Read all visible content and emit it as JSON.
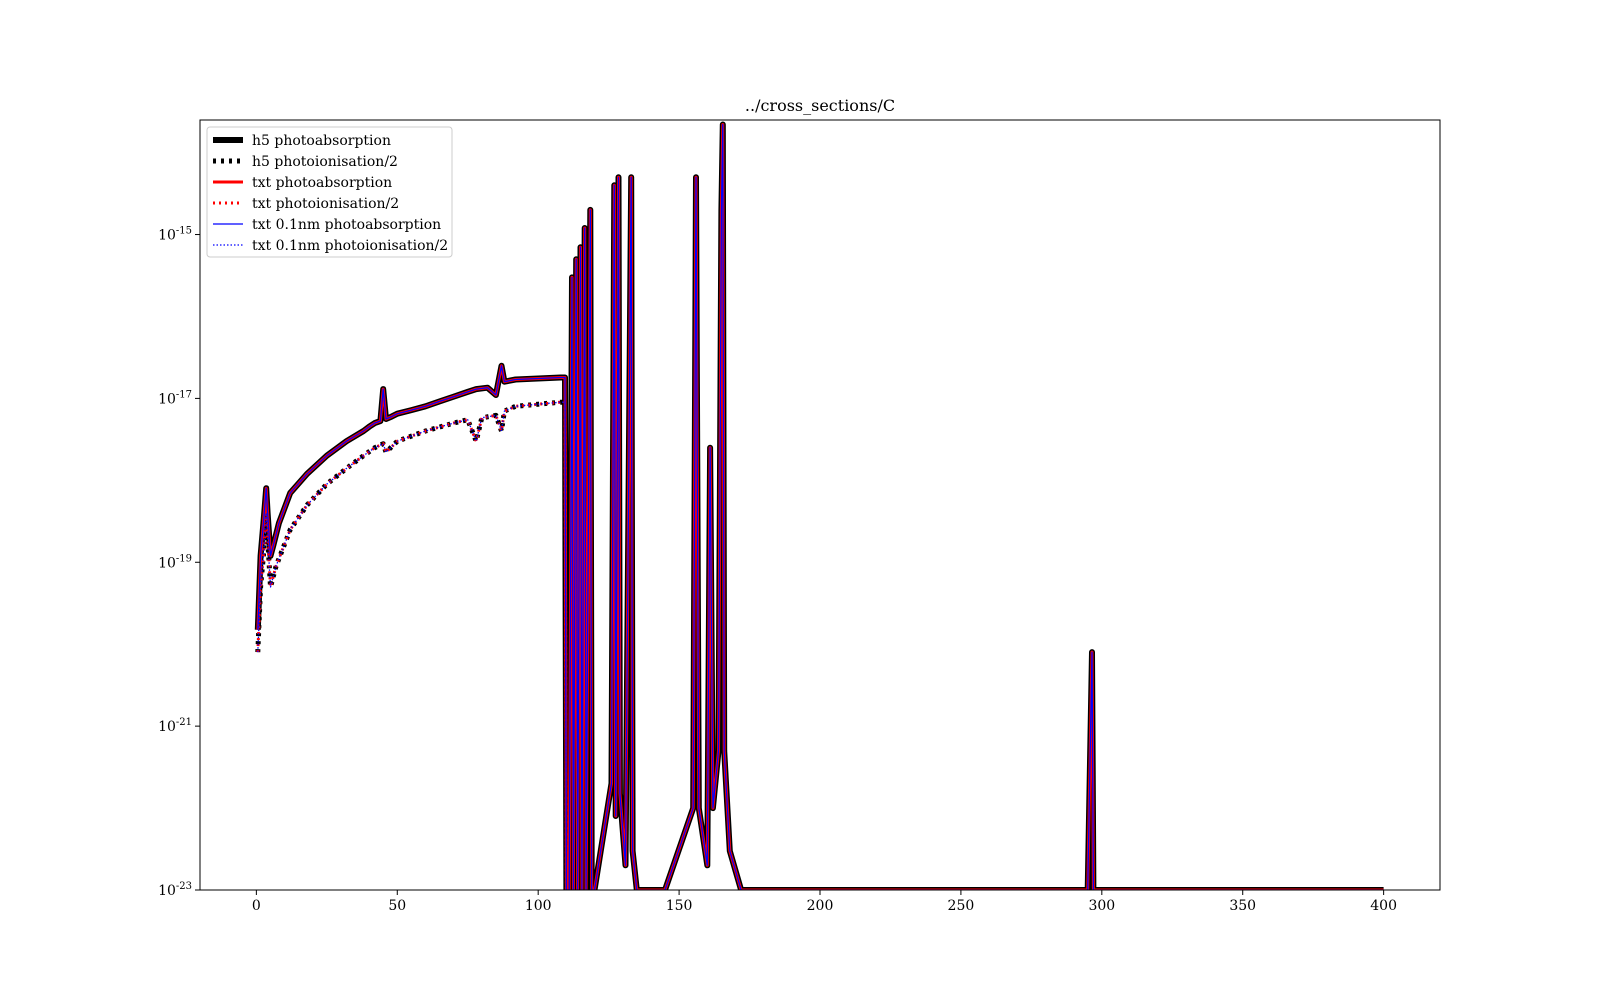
{
  "chart_data": {
    "type": "line",
    "title": "../cross_sections/C",
    "xlabel": "",
    "ylabel": "",
    "xlim": [
      -20,
      420
    ],
    "ylim": [
      1e-23,
      2.5e-14
    ],
    "yscale": "log",
    "xticks": [
      0,
      50,
      100,
      150,
      200,
      250,
      300,
      350,
      400
    ],
    "yticks": [
      {
        "value": 1e-23,
        "base": "10",
        "exp": "-23"
      },
      {
        "value": 1e-21,
        "base": "10",
        "exp": "-21"
      },
      {
        "value": 1e-19,
        "base": "10",
        "exp": "-19"
      },
      {
        "value": 1e-17,
        "base": "10",
        "exp": "-17"
      },
      {
        "value": 1e-15,
        "base": "10",
        "exp": "-15"
      }
    ],
    "grid": false,
    "legend_position": "top-left",
    "series": [
      {
        "name": "h5 photoabsorption",
        "color": "#000000",
        "style": "solid-thick",
        "key": "abs"
      },
      {
        "name": "h5 photoionisation/2",
        "color": "#000000",
        "style": "dotted-thick",
        "key": "ion"
      },
      {
        "name": "txt photoabsorption",
        "color": "#ff0000",
        "style": "solid-medium",
        "key": "abs"
      },
      {
        "name": "txt photoionisation/2",
        "color": "#ff0000",
        "style": "dotted-medium",
        "key": "ion"
      },
      {
        "name": "txt 0.1nm photoabsorption",
        "color": "#0000ff",
        "style": "solid-thin",
        "key": "abs"
      },
      {
        "name": "txt 0.1nm photoionisation/2",
        "color": "#0000ff",
        "style": "dotted-thin",
        "key": "ion"
      }
    ],
    "abs": [
      [
        0.5,
        1.5e-20
      ],
      [
        1.5,
        1.2e-19
      ],
      [
        2.5,
        3e-19
      ],
      [
        3.5,
        8e-19
      ],
      [
        4,
        4e-19
      ],
      [
        5,
        1.2e-19
      ],
      [
        6,
        1.6e-19
      ],
      [
        8,
        3e-19
      ],
      [
        12,
        7e-19
      ],
      [
        18,
        1.2e-18
      ],
      [
        25,
        2e-18
      ],
      [
        32,
        3e-18
      ],
      [
        38,
        4e-18
      ],
      [
        40,
        4.5e-18
      ],
      [
        42,
        5e-18
      ],
      [
        44,
        5.3e-18
      ],
      [
        45,
        1.3e-17
      ],
      [
        46,
        5.6e-18
      ],
      [
        48,
        6e-18
      ],
      [
        50,
        6.5e-18
      ],
      [
        55,
        7.2e-18
      ],
      [
        60,
        8e-18
      ],
      [
        65,
        9.2e-18
      ],
      [
        70,
        1.05e-17
      ],
      [
        75,
        1.2e-17
      ],
      [
        78,
        1.3e-17
      ],
      [
        82,
        1.35e-17
      ],
      [
        85,
        1.1e-17
      ],
      [
        87,
        2.5e-17
      ],
      [
        88,
        1.6e-17
      ],
      [
        92,
        1.7e-17
      ],
      [
        100,
        1.75e-17
      ],
      [
        108,
        1.8e-17
      ],
      [
        109.5,
        1.8e-17
      ],
      [
        110,
        1e-23
      ],
      [
        111,
        1e-23
      ],
      [
        112,
        3e-16
      ],
      [
        112.5,
        1e-23
      ],
      [
        113.5,
        5e-16
      ],
      [
        114,
        1e-23
      ],
      [
        115,
        7e-16
      ],
      [
        115.5,
        1e-23
      ],
      [
        116.5,
        1.2e-15
      ],
      [
        117,
        1e-23
      ],
      [
        118.5,
        2e-15
      ],
      [
        119,
        1e-23
      ],
      [
        120,
        1e-23
      ],
      [
        126,
        2e-22
      ],
      [
        127,
        4e-15
      ],
      [
        127.5,
        8e-23
      ],
      [
        128.5,
        5e-15
      ],
      [
        129,
        1.5e-22
      ],
      [
        131,
        2e-23
      ],
      [
        133,
        5e-15
      ],
      [
        133.5,
        3e-23
      ],
      [
        135,
        1e-23
      ],
      [
        145,
        1e-23
      ],
      [
        155,
        1e-22
      ],
      [
        156,
        5e-15
      ],
      [
        157,
        1e-22
      ],
      [
        160,
        2e-23
      ],
      [
        161,
        2.5e-18
      ],
      [
        162,
        1e-22
      ],
      [
        164,
        5e-22
      ],
      [
        165,
        2e-15
      ],
      [
        165.5,
        2.2e-14
      ],
      [
        166,
        5e-22
      ],
      [
        168,
        3e-23
      ],
      [
        172,
        1e-23
      ],
      [
        200,
        1e-23
      ],
      [
        295,
        1e-23
      ],
      [
        296.5,
        8e-21
      ],
      [
        297,
        1e-23
      ],
      [
        400,
        1e-23
      ]
    ],
    "ion": [
      [
        0.5,
        8e-21
      ],
      [
        1.5,
        5e-20
      ],
      [
        2.5,
        1.2e-19
      ],
      [
        3.5,
        4e-19
      ],
      [
        4,
        2e-19
      ],
      [
        5,
        5e-20
      ],
      [
        7,
        9e-20
      ],
      [
        12,
        2.5e-19
      ],
      [
        18,
        5e-19
      ],
      [
        25,
        9e-19
      ],
      [
        32,
        1.4e-18
      ],
      [
        38,
        2e-18
      ],
      [
        42,
        2.5e-18
      ],
      [
        45,
        2.8e-18
      ],
      [
        46,
        2.2e-18
      ],
      [
        50,
        3e-18
      ],
      [
        60,
        4e-18
      ],
      [
        70,
        5e-18
      ],
      [
        75,
        5.5e-18
      ],
      [
        78,
        3e-18
      ],
      [
        80,
        5.8e-18
      ],
      [
        85,
        6.2e-18
      ],
      [
        87,
        4e-18
      ],
      [
        88,
        7e-18
      ],
      [
        92,
        8e-18
      ],
      [
        100,
        8.5e-18
      ],
      [
        108,
        9e-18
      ],
      [
        109.5,
        9e-18
      ],
      [
        110,
        1e-23
      ]
    ]
  }
}
